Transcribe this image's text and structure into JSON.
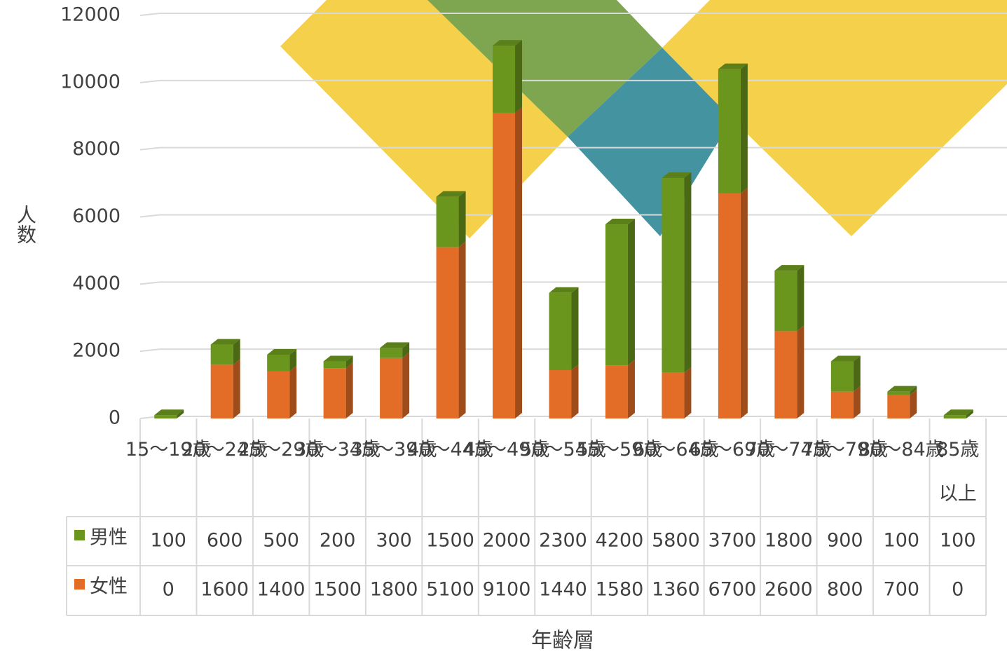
{
  "chart_data": {
    "type": "bar",
    "stacked": true,
    "x_label": "年齢層",
    "y_label": "人数",
    "categories": [
      "15～19歳",
      "20～24歳",
      "25～29歳",
      "30～34歳",
      "35～39歳",
      "40～44歳",
      "45～49歳",
      "50～54歳",
      "55～59歳",
      "60～64歳",
      "65～69歳",
      "70～74歳",
      "75～79歳",
      "80～84歳",
      "85歳以上"
    ],
    "series": [
      {
        "name": "男性",
        "color": "#6b961e",
        "values": [
          100,
          600,
          500,
          200,
          300,
          1500,
          2000,
          2300,
          4200,
          5800,
          3700,
          1800,
          900,
          100,
          100
        ]
      },
      {
        "name": "女性",
        "color": "#e36c26",
        "values": [
          0,
          1600,
          1400,
          1500,
          1800,
          5100,
          9100,
          1440,
          1580,
          1360,
          6700,
          2600,
          800,
          700,
          0
        ]
      }
    ],
    "ylim": [
      0,
      12000
    ],
    "yticks": [
      0,
      2000,
      4000,
      6000,
      8000,
      10000,
      12000
    ],
    "grid": true,
    "data_table": true
  }
}
